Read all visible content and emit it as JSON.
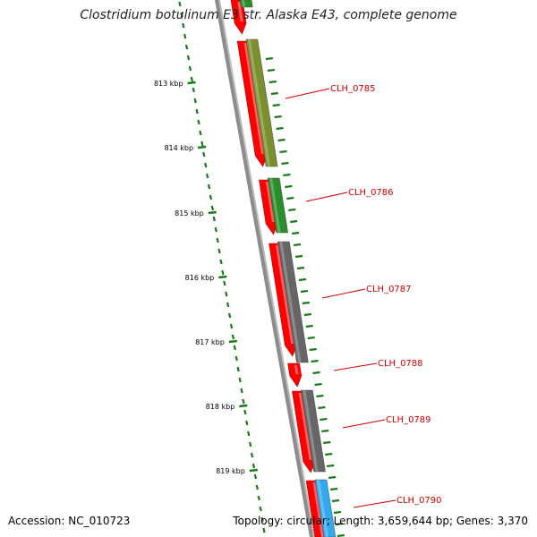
{
  "title": "Clostridium botulinum E3 str. Alaska E43, complete genome",
  "footer": {
    "accession": "Accession: NC_010723",
    "summary": "Topology: circular; Length: 3,659,644 bp; Genes: 3,370"
  },
  "colors": {
    "backbone": "#8c8c8c",
    "ticks": "#1a7a1a",
    "gene_red": "#ff0000",
    "gene_label": "#cc0000",
    "olive": "#7a8f2e",
    "green": "#2a8f2a",
    "gray": "#666666",
    "blue": "#33aaee"
  },
  "scale_ticks": [
    {
      "label": "813 kbp"
    },
    {
      "label": "814 kbp"
    },
    {
      "label": "815 kbp"
    },
    {
      "label": "816 kbp"
    },
    {
      "label": "817 kbp"
    },
    {
      "label": "818 kbp"
    },
    {
      "label": "819 kbp"
    }
  ],
  "genes": [
    {
      "name": "CLH_0785",
      "cog_color": "olive"
    },
    {
      "name": "CLH_0786",
      "cog_color": "green"
    },
    {
      "name": "CLH_0787",
      "cog_color": "gray"
    },
    {
      "name": "CLH_0788",
      "cog_color": "none"
    },
    {
      "name": "CLH_0789",
      "cog_color": "gray"
    },
    {
      "name": "CLH_0790",
      "cog_color": "blue"
    }
  ]
}
